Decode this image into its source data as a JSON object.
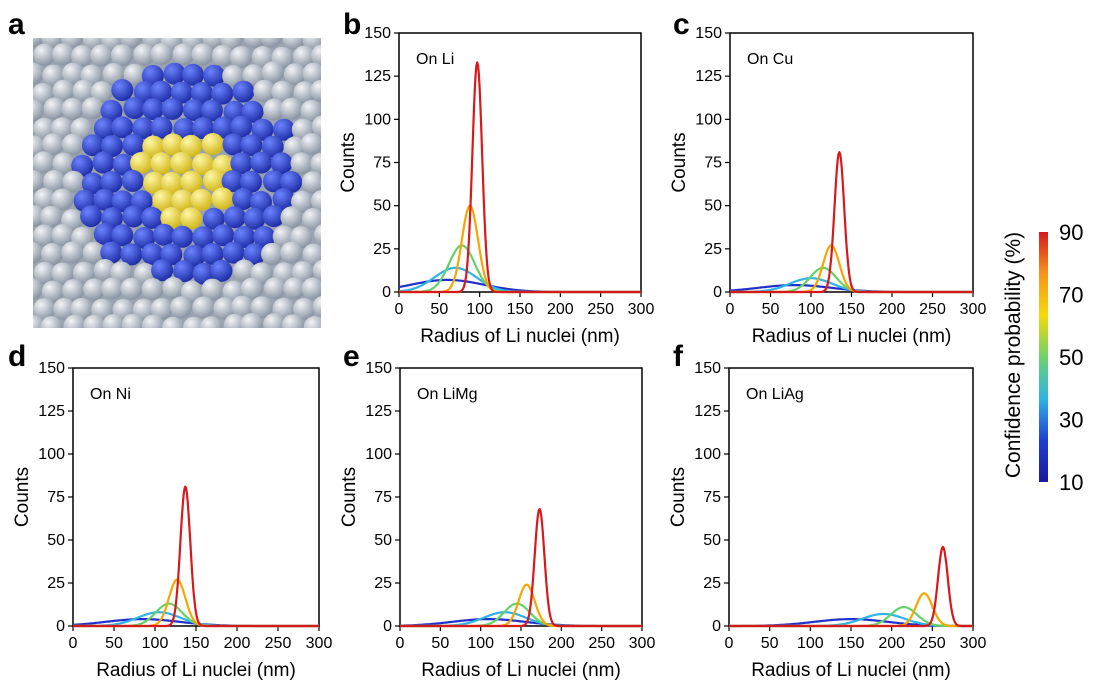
{
  "figure": {
    "panel_letters": [
      "a",
      "b",
      "c",
      "d",
      "e",
      "f"
    ]
  },
  "colorbar": {
    "label": "Confidence probability (%)",
    "ticks": [
      "90",
      "70",
      "50",
      "30",
      "10"
    ],
    "colors": [
      "#d7191c",
      "#f7941d",
      "#f5d90a",
      "#6bd36b",
      "#2fb4e5",
      "#1f3fd1",
      "#1a1a9e"
    ]
  },
  "shared_axes": {
    "xlabel": "Radius of Li nuclei (nm)",
    "ylabel": "Counts",
    "xticks": [
      0,
      50,
      100,
      150,
      200,
      250,
      300
    ],
    "yticks": [
      0,
      25,
      50,
      75,
      100,
      125,
      150
    ],
    "xlim": [
      0,
      300
    ],
    "ylim": [
      0,
      150
    ]
  },
  "illustration": {
    "colors": {
      "core": "#f3e24a",
      "shell": "#3551e0",
      "substrate": "#c5ccd6"
    }
  },
  "chart_data": [
    {
      "panel": "b",
      "type": "line",
      "annotation": "On Li",
      "xlabel": "Radius of Li nuclei (nm)",
      "ylabel": "Counts",
      "xlim": [
        0,
        300
      ],
      "ylim": [
        0,
        150
      ],
      "series": [
        {
          "confidence": 90,
          "color": "#d7191c",
          "peak_x": 97,
          "peak_y": 133
        },
        {
          "confidence": 70,
          "color": "#f7a600",
          "peak_x": 88,
          "peak_y": 50
        },
        {
          "confidence": 50,
          "color": "#66d16b",
          "peak_x": 78,
          "peak_y": 27
        },
        {
          "confidence": 30,
          "color": "#2fb4e5",
          "peak_x": 70,
          "peak_y": 14
        },
        {
          "confidence": 10,
          "color": "#2130c8",
          "peak_x": 60,
          "peak_y": 7
        }
      ]
    },
    {
      "panel": "c",
      "type": "line",
      "annotation": "On Cu",
      "xlabel": "Radius of Li nuclei (nm)",
      "ylabel": "Counts",
      "xlim": [
        0,
        300
      ],
      "ylim": [
        0,
        150
      ],
      "series": [
        {
          "confidence": 90,
          "color": "#d7191c",
          "peak_x": 135,
          "peak_y": 81
        },
        {
          "confidence": 70,
          "color": "#f7a600",
          "peak_x": 125,
          "peak_y": 27
        },
        {
          "confidence": 50,
          "color": "#66d16b",
          "peak_x": 115,
          "peak_y": 14
        },
        {
          "confidence": 30,
          "color": "#2fb4e5",
          "peak_x": 100,
          "peak_y": 8
        },
        {
          "confidence": 10,
          "color": "#2130c8",
          "peak_x": 80,
          "peak_y": 4
        }
      ]
    },
    {
      "panel": "d",
      "type": "line",
      "annotation": "On Ni",
      "xlabel": "Radius of Li nuclei (nm)",
      "ylabel": "Counts",
      "xlim": [
        0,
        300
      ],
      "ylim": [
        0,
        150
      ],
      "series": [
        {
          "confidence": 90,
          "color": "#d7191c",
          "peak_x": 137,
          "peak_y": 81
        },
        {
          "confidence": 70,
          "color": "#f7a600",
          "peak_x": 127,
          "peak_y": 27
        },
        {
          "confidence": 50,
          "color": "#66d16b",
          "peak_x": 117,
          "peak_y": 13
        },
        {
          "confidence": 30,
          "color": "#2fb4e5",
          "peak_x": 105,
          "peak_y": 8
        },
        {
          "confidence": 10,
          "color": "#2130c8",
          "peak_x": 85,
          "peak_y": 4
        }
      ]
    },
    {
      "panel": "e",
      "type": "line",
      "annotation": "On LiMg",
      "xlabel": "Radius of Li nuclei (nm)",
      "ylabel": "Counts",
      "xlim": [
        0,
        300
      ],
      "ylim": [
        0,
        150
      ],
      "series": [
        {
          "confidence": 90,
          "color": "#d7191c",
          "peak_x": 173,
          "peak_y": 68
        },
        {
          "confidence": 70,
          "color": "#f7a600",
          "peak_x": 157,
          "peak_y": 24
        },
        {
          "confidence": 50,
          "color": "#66d16b",
          "peak_x": 145,
          "peak_y": 13
        },
        {
          "confidence": 30,
          "color": "#2fb4e5",
          "peak_x": 130,
          "peak_y": 8
        },
        {
          "confidence": 10,
          "color": "#2130c8",
          "peak_x": 110,
          "peak_y": 4
        }
      ]
    },
    {
      "panel": "f",
      "type": "line",
      "annotation": "On LiAg",
      "xlabel": "Radius of Li nuclei (nm)",
      "ylabel": "Counts",
      "xlim": [
        0,
        300
      ],
      "ylim": [
        0,
        150
      ],
      "series": [
        {
          "confidence": 90,
          "color": "#d7191c",
          "peak_x": 263,
          "peak_y": 46
        },
        {
          "confidence": 70,
          "color": "#f7a600",
          "peak_x": 240,
          "peak_y": 19
        },
        {
          "confidence": 50,
          "color": "#66d16b",
          "peak_x": 215,
          "peak_y": 11
        },
        {
          "confidence": 30,
          "color": "#2fb4e5",
          "peak_x": 190,
          "peak_y": 7
        },
        {
          "confidence": 10,
          "color": "#2130c8",
          "peak_x": 150,
          "peak_y": 4
        }
      ]
    }
  ]
}
